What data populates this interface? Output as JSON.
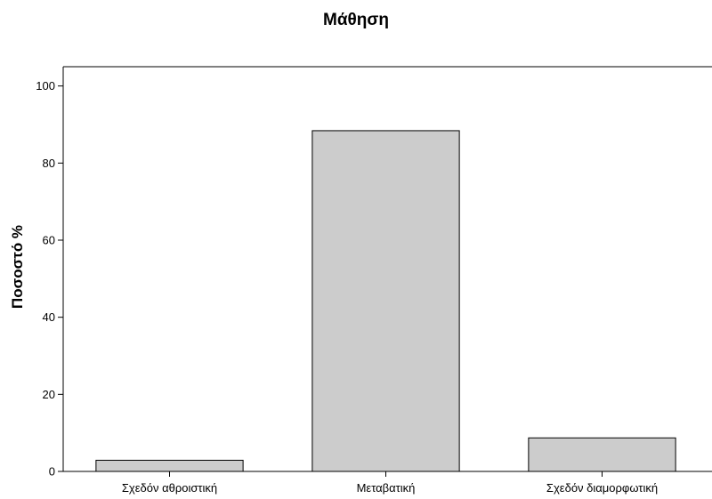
{
  "chart_data": {
    "type": "bar",
    "title": "Μάθηση",
    "xlabel": "",
    "ylabel": "Ποσοστό %",
    "categories": [
      "Σχεδόν αθροιστική",
      "Μεταβατική",
      "Σχεδόν διαμορφωτική"
    ],
    "values": [
      2.9,
      88.4,
      8.7
    ],
    "ylim": [
      0,
      105
    ],
    "yticks": [
      0,
      20,
      40,
      60,
      80,
      100
    ],
    "grid": false,
    "bar_color": "#cccccc",
    "bar_stroke": "#000000"
  }
}
